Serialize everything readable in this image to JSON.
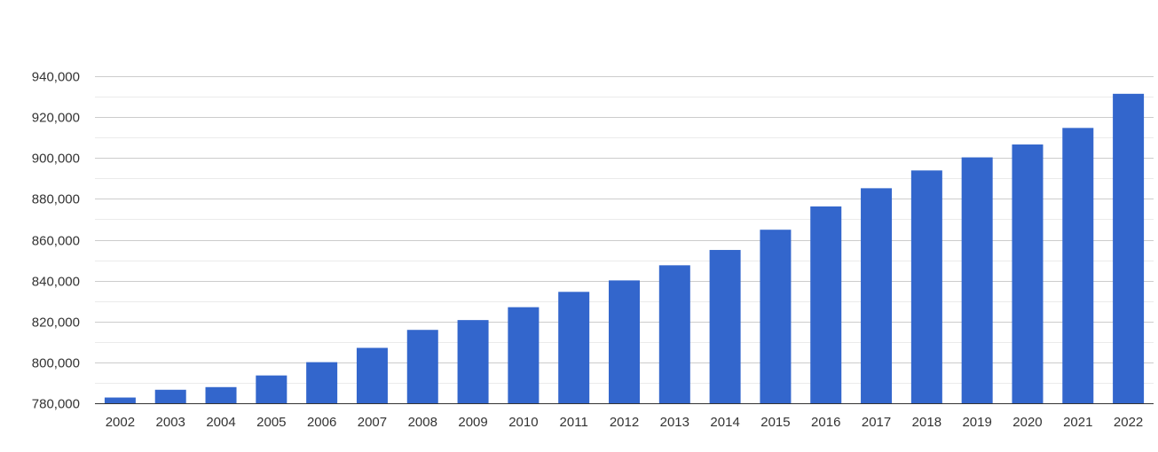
{
  "chart_data": {
    "type": "bar",
    "title": "",
    "xlabel": "",
    "ylabel": "",
    "categories": [
      "2002",
      "2003",
      "2004",
      "2005",
      "2006",
      "2007",
      "2008",
      "2009",
      "2010",
      "2011",
      "2012",
      "2013",
      "2014",
      "2015",
      "2016",
      "2017",
      "2018",
      "2019",
      "2020",
      "2021",
      "2022"
    ],
    "values": [
      782800,
      786600,
      787900,
      793600,
      800100,
      807100,
      815900,
      820700,
      827000,
      834500,
      840100,
      847500,
      855000,
      864900,
      876300,
      885200,
      893900,
      900300,
      906600,
      914700,
      931400
    ],
    "ylim": [
      780000,
      940000
    ],
    "yticks": [
      780000,
      800000,
      820000,
      840000,
      860000,
      880000,
      900000,
      920000,
      940000
    ],
    "ytick_labels": [
      "780,000",
      "800,000",
      "820,000",
      "840,000",
      "860,000",
      "880,000",
      "900,000",
      "920,000",
      "940,000"
    ],
    "grid": true,
    "legend": "none",
    "colors": {
      "bar": "#3366cc",
      "major_grid": "#cccccc",
      "minor_grid": "#ebebeb",
      "axis": "#333333",
      "text": "#333333"
    }
  }
}
